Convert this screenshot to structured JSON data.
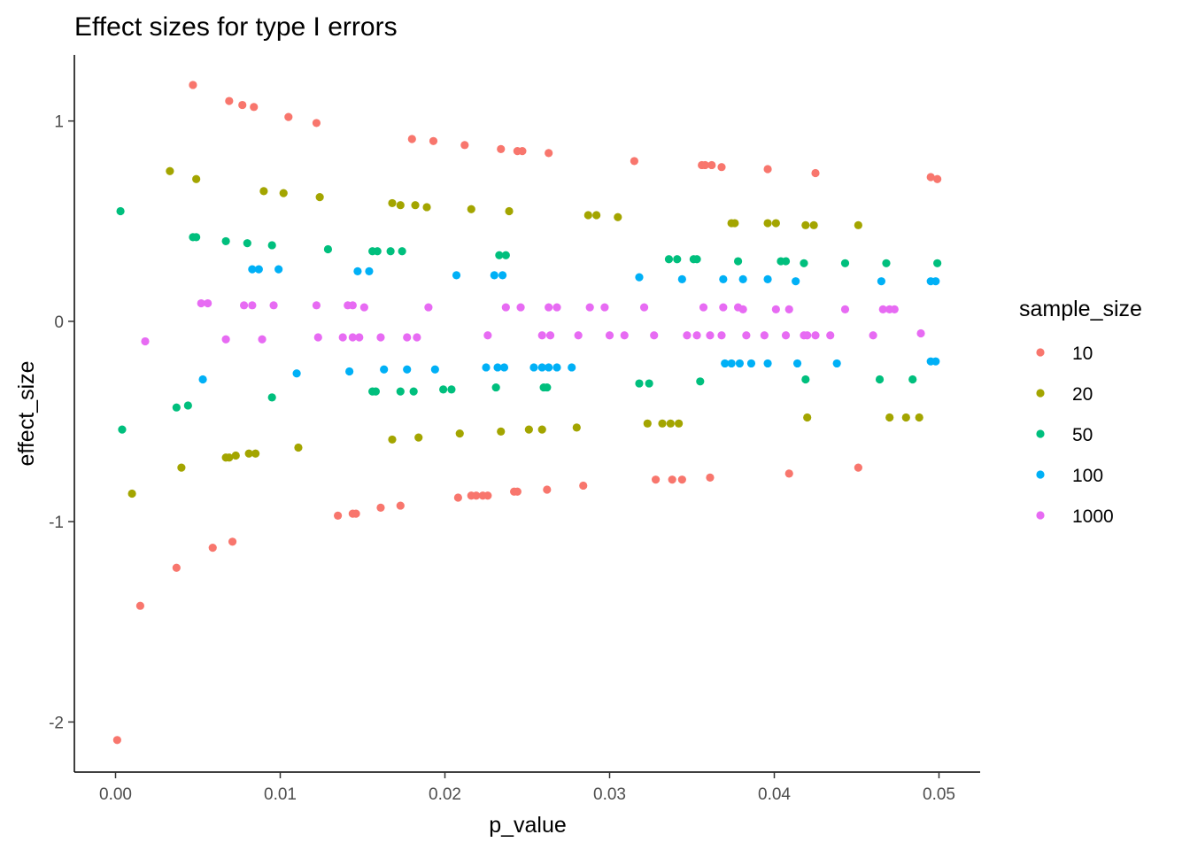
{
  "chart_data": {
    "type": "scatter",
    "title": "Effect sizes for type I errors",
    "xlabel": "p_value",
    "ylabel": "effect_size",
    "xlim": [
      -0.0025,
      0.0525
    ],
    "ylim": [
      -2.25,
      1.33
    ],
    "xticks": [
      0.0,
      0.01,
      0.02,
      0.03,
      0.04,
      0.05
    ],
    "xtick_labels": [
      "0.00",
      "0.01",
      "0.02",
      "0.03",
      "0.04",
      "0.05"
    ],
    "yticks": [
      -2,
      -1,
      0,
      1
    ],
    "ytick_labels": [
      "-2",
      "-1",
      "0",
      "1"
    ],
    "grid": false,
    "legend": {
      "title": "sample_size",
      "position": "right"
    },
    "series": [
      {
        "name": "10",
        "color": "#F8766D",
        "points": [
          [
            0.0001,
            -2.09
          ],
          [
            0.0015,
            -1.42
          ],
          [
            0.0037,
            -1.23
          ],
          [
            0.0059,
            -1.13
          ],
          [
            0.0071,
            -1.1
          ],
          [
            0.0047,
            1.18
          ],
          [
            0.0069,
            1.1
          ],
          [
            0.0077,
            1.08
          ],
          [
            0.0084,
            1.07
          ],
          [
            0.0105,
            1.02
          ],
          [
            0.0122,
            0.99
          ],
          [
            0.0135,
            -0.97
          ],
          [
            0.0144,
            -0.96
          ],
          [
            0.0146,
            -0.96
          ],
          [
            0.0161,
            -0.93
          ],
          [
            0.0173,
            -0.92
          ],
          [
            0.018,
            0.91
          ],
          [
            0.0193,
            0.9
          ],
          [
            0.0208,
            -0.88
          ],
          [
            0.0212,
            0.88
          ],
          [
            0.0216,
            -0.87
          ],
          [
            0.0219,
            -0.87
          ],
          [
            0.0223,
            -0.87
          ],
          [
            0.0226,
            -0.87
          ],
          [
            0.0234,
            0.86
          ],
          [
            0.0242,
            -0.85
          ],
          [
            0.0244,
            -0.85
          ],
          [
            0.0244,
            0.85
          ],
          [
            0.0247,
            0.85
          ],
          [
            0.0262,
            -0.84
          ],
          [
            0.0263,
            0.84
          ],
          [
            0.0284,
            -0.82
          ],
          [
            0.0315,
            0.8
          ],
          [
            0.0328,
            -0.79
          ],
          [
            0.0338,
            -0.79
          ],
          [
            0.0344,
            -0.79
          ],
          [
            0.0356,
            0.78
          ],
          [
            0.0358,
            0.78
          ],
          [
            0.0362,
            0.78
          ],
          [
            0.0361,
            -0.78
          ],
          [
            0.0368,
            0.77
          ],
          [
            0.0396,
            0.76
          ],
          [
            0.0409,
            -0.76
          ],
          [
            0.0425,
            0.74
          ],
          [
            0.0451,
            -0.73
          ],
          [
            0.0495,
            0.72
          ],
          [
            0.0499,
            0.71
          ]
        ]
      },
      {
        "name": "20",
        "color": "#A3A500",
        "points": [
          [
            0.001,
            -0.86
          ],
          [
            0.0033,
            0.75
          ],
          [
            0.004,
            -0.73
          ],
          [
            0.0049,
            0.71
          ],
          [
            0.0067,
            -0.68
          ],
          [
            0.0069,
            -0.68
          ],
          [
            0.0073,
            -0.67
          ],
          [
            0.0081,
            -0.66
          ],
          [
            0.0085,
            -0.66
          ],
          [
            0.009,
            0.65
          ],
          [
            0.0102,
            0.64
          ],
          [
            0.0111,
            -0.63
          ],
          [
            0.0124,
            0.62
          ],
          [
            0.0168,
            -0.59
          ],
          [
            0.0168,
            0.59
          ],
          [
            0.0173,
            0.58
          ],
          [
            0.0182,
            0.58
          ],
          [
            0.0184,
            -0.58
          ],
          [
            0.0189,
            0.57
          ],
          [
            0.0209,
            -0.56
          ],
          [
            0.0216,
            0.56
          ],
          [
            0.0234,
            -0.55
          ],
          [
            0.0239,
            0.55
          ],
          [
            0.0251,
            -0.54
          ],
          [
            0.0259,
            -0.54
          ],
          [
            0.028,
            -0.53
          ],
          [
            0.0287,
            0.53
          ],
          [
            0.0292,
            0.53
          ],
          [
            0.0305,
            0.52
          ],
          [
            0.0323,
            -0.51
          ],
          [
            0.0332,
            -0.51
          ],
          [
            0.0337,
            -0.51
          ],
          [
            0.0342,
            -0.51
          ],
          [
            0.0374,
            0.49
          ],
          [
            0.0376,
            0.49
          ],
          [
            0.0396,
            0.49
          ],
          [
            0.0401,
            0.49
          ],
          [
            0.0419,
            0.48
          ],
          [
            0.042,
            -0.48
          ],
          [
            0.0424,
            0.48
          ],
          [
            0.0451,
            0.48
          ],
          [
            0.047,
            -0.48
          ],
          [
            0.048,
            -0.48
          ],
          [
            0.0488,
            -0.48
          ]
        ]
      },
      {
        "name": "50",
        "color": "#00BF7D",
        "points": [
          [
            0.0003,
            0.55
          ],
          [
            0.0004,
            -0.54
          ],
          [
            0.0037,
            -0.43
          ],
          [
            0.0044,
            -0.42
          ],
          [
            0.0047,
            0.42
          ],
          [
            0.0049,
            0.42
          ],
          [
            0.0067,
            0.4
          ],
          [
            0.008,
            0.39
          ],
          [
            0.0095,
            0.38
          ],
          [
            0.0095,
            -0.38
          ],
          [
            0.0129,
            0.36
          ],
          [
            0.0156,
            -0.35
          ],
          [
            0.0158,
            -0.35
          ],
          [
            0.0156,
            0.35
          ],
          [
            0.0159,
            0.35
          ],
          [
            0.0167,
            0.35
          ],
          [
            0.0173,
            -0.35
          ],
          [
            0.0174,
            0.35
          ],
          [
            0.0181,
            -0.35
          ],
          [
            0.0199,
            -0.34
          ],
          [
            0.0204,
            -0.34
          ],
          [
            0.0231,
            -0.33
          ],
          [
            0.0233,
            0.33
          ],
          [
            0.0237,
            0.33
          ],
          [
            0.026,
            -0.33
          ],
          [
            0.0262,
            -0.33
          ],
          [
            0.0318,
            -0.31
          ],
          [
            0.0324,
            -0.31
          ],
          [
            0.0336,
            0.31
          ],
          [
            0.0341,
            0.31
          ],
          [
            0.0351,
            0.31
          ],
          [
            0.0353,
            0.31
          ],
          [
            0.0355,
            -0.3
          ],
          [
            0.0378,
            0.3
          ],
          [
            0.0404,
            0.3
          ],
          [
            0.0407,
            0.3
          ],
          [
            0.0418,
            0.29
          ],
          [
            0.0419,
            -0.29
          ],
          [
            0.0443,
            0.29
          ],
          [
            0.0464,
            -0.29
          ],
          [
            0.0468,
            0.29
          ],
          [
            0.0484,
            -0.29
          ],
          [
            0.0499,
            0.29
          ]
        ]
      },
      {
        "name": "100",
        "color": "#00B0F6",
        "points": [
          [
            0.0053,
            -0.29
          ],
          [
            0.0083,
            0.26
          ],
          [
            0.0087,
            0.26
          ],
          [
            0.0099,
            0.26
          ],
          [
            0.011,
            -0.26
          ],
          [
            0.0142,
            -0.25
          ],
          [
            0.0147,
            0.25
          ],
          [
            0.0154,
            0.25
          ],
          [
            0.0163,
            -0.24
          ],
          [
            0.0177,
            -0.24
          ],
          [
            0.0194,
            -0.24
          ],
          [
            0.0207,
            0.23
          ],
          [
            0.0225,
            -0.23
          ],
          [
            0.023,
            0.23
          ],
          [
            0.0232,
            -0.23
          ],
          [
            0.0235,
            0.23
          ],
          [
            0.0236,
            -0.23
          ],
          [
            0.0254,
            -0.23
          ],
          [
            0.0259,
            -0.23
          ],
          [
            0.0263,
            -0.23
          ],
          [
            0.0268,
            -0.23
          ],
          [
            0.0277,
            -0.23
          ],
          [
            0.0318,
            0.22
          ],
          [
            0.0344,
            0.21
          ],
          [
            0.0369,
            0.21
          ],
          [
            0.037,
            -0.21
          ],
          [
            0.0374,
            -0.21
          ],
          [
            0.0379,
            -0.21
          ],
          [
            0.0381,
            0.21
          ],
          [
            0.0386,
            -0.21
          ],
          [
            0.0396,
            -0.21
          ],
          [
            0.0396,
            0.21
          ],
          [
            0.0413,
            0.2
          ],
          [
            0.0414,
            -0.21
          ],
          [
            0.0438,
            -0.21
          ],
          [
            0.0465,
            0.2
          ],
          [
            0.0495,
            -0.2
          ],
          [
            0.0495,
            0.2
          ],
          [
            0.0498,
            -0.2
          ],
          [
            0.0498,
            0.2
          ]
        ]
      },
      {
        "name": "1000",
        "color": "#E76BF3",
        "points": [
          [
            0.0018,
            -0.1
          ],
          [
            0.0052,
            0.09
          ],
          [
            0.0056,
            0.09
          ],
          [
            0.0067,
            -0.09
          ],
          [
            0.0078,
            0.08
          ],
          [
            0.0083,
            0.08
          ],
          [
            0.0089,
            -0.09
          ],
          [
            0.0096,
            0.08
          ],
          [
            0.0122,
            0.08
          ],
          [
            0.0123,
            -0.08
          ],
          [
            0.0138,
            -0.08
          ],
          [
            0.0141,
            0.08
          ],
          [
            0.0144,
            -0.08
          ],
          [
            0.0144,
            0.08
          ],
          [
            0.0148,
            -0.08
          ],
          [
            0.0151,
            0.07
          ],
          [
            0.0161,
            -0.08
          ],
          [
            0.0177,
            -0.08
          ],
          [
            0.0183,
            -0.08
          ],
          [
            0.019,
            0.07
          ],
          [
            0.0226,
            -0.07
          ],
          [
            0.0237,
            0.07
          ],
          [
            0.0246,
            0.07
          ],
          [
            0.0259,
            -0.07
          ],
          [
            0.0263,
            0.07
          ],
          [
            0.0264,
            -0.07
          ],
          [
            0.0268,
            0.07
          ],
          [
            0.0281,
            -0.07
          ],
          [
            0.0288,
            0.07
          ],
          [
            0.0297,
            0.07
          ],
          [
            0.03,
            -0.07
          ],
          [
            0.0309,
            -0.07
          ],
          [
            0.0321,
            0.07
          ],
          [
            0.0327,
            -0.07
          ],
          [
            0.0347,
            -0.07
          ],
          [
            0.0353,
            -0.07
          ],
          [
            0.0357,
            0.07
          ],
          [
            0.0361,
            -0.07
          ],
          [
            0.0368,
            -0.07
          ],
          [
            0.0369,
            0.07
          ],
          [
            0.0378,
            0.07
          ],
          [
            0.0381,
            0.06
          ],
          [
            0.0383,
            -0.07
          ],
          [
            0.0394,
            -0.07
          ],
          [
            0.0401,
            0.06
          ],
          [
            0.0407,
            -0.07
          ],
          [
            0.0409,
            0.06
          ],
          [
            0.0418,
            -0.07
          ],
          [
            0.042,
            -0.07
          ],
          [
            0.0425,
            -0.07
          ],
          [
            0.0434,
            -0.07
          ],
          [
            0.0443,
            0.06
          ],
          [
            0.046,
            -0.07
          ],
          [
            0.0466,
            0.06
          ],
          [
            0.047,
            0.06
          ],
          [
            0.0473,
            0.06
          ],
          [
            0.0489,
            -0.06
          ]
        ]
      }
    ]
  }
}
